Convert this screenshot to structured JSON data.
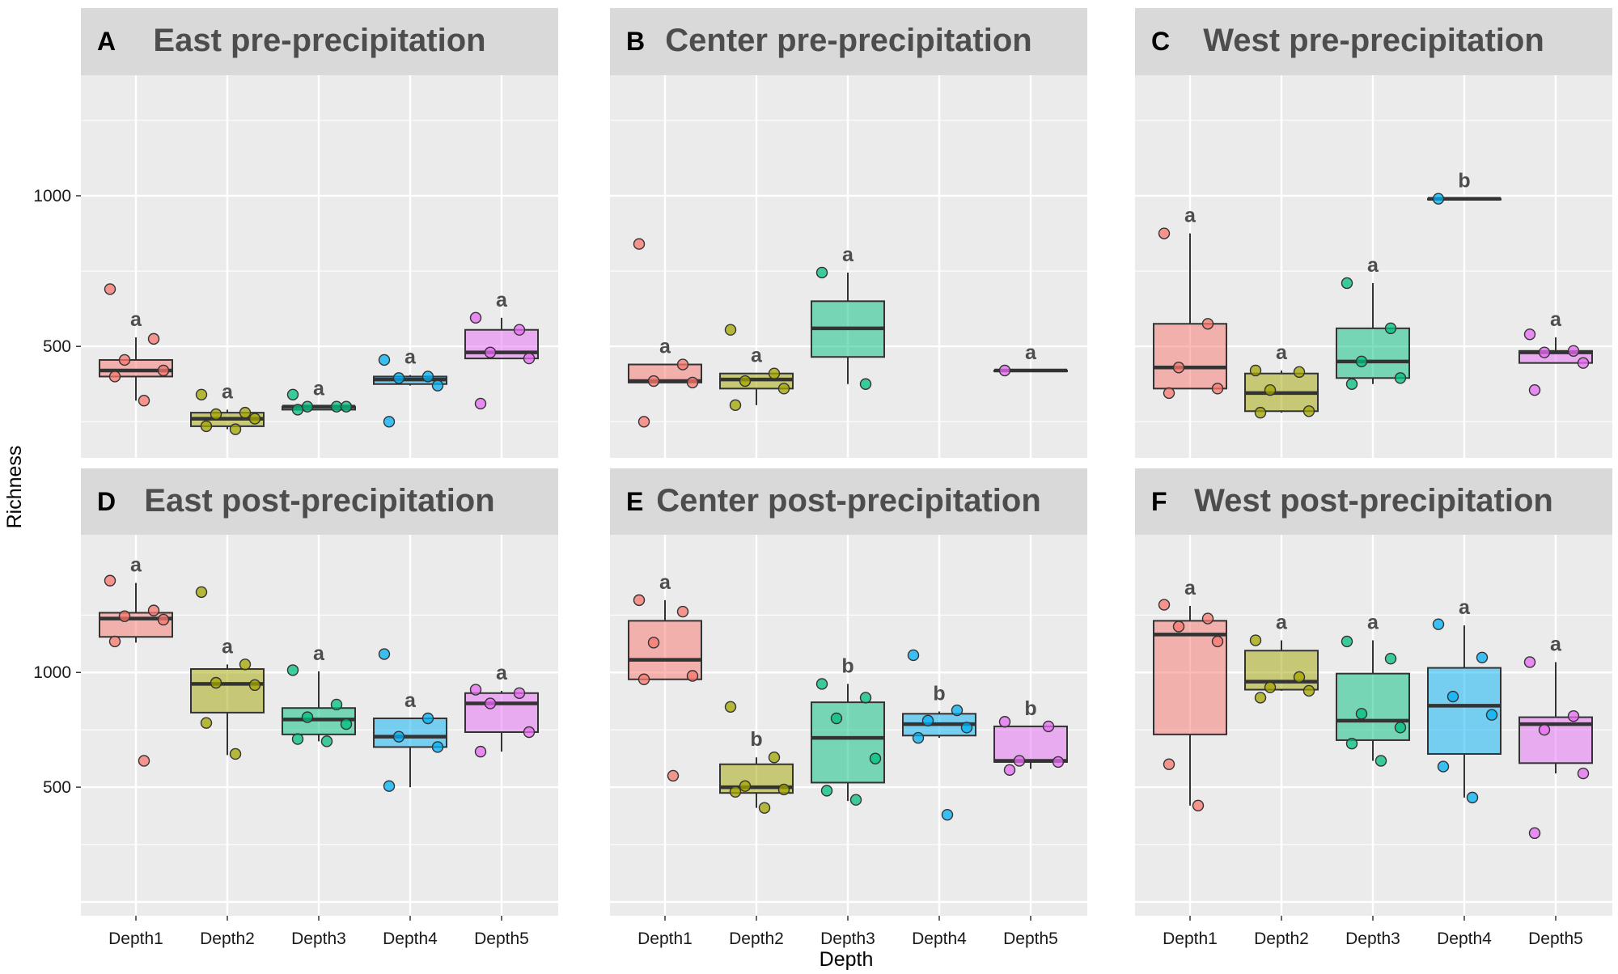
{
  "chart_data": {
    "type": "box",
    "xlabel": "Depth",
    "ylabel": "Richness",
    "categories": [
      "Depth1",
      "Depth2",
      "Depth3",
      "Depth4",
      "Depth5"
    ],
    "colors": [
      "#f8766d",
      "#a3a500",
      "#00bf7d",
      "#00b0f6",
      "#e76bf3"
    ],
    "rows": [
      {
        "ylim": [
          130,
          1400
        ],
        "yticks": [
          500,
          1000
        ]
      },
      {
        "ylim": [
          -60,
          1600
        ],
        "yticks": [
          500,
          1000
        ]
      }
    ],
    "panels": [
      {
        "letter": "A",
        "title": "East pre-precipitation",
        "boxes": [
          {
            "q1": 400,
            "median": 420,
            "q3": 455,
            "whisker_low": 320,
            "whisker_high": 530,
            "sig": "a",
            "points": [
              690,
              525,
              455,
              420,
              400,
              320
            ]
          },
          {
            "q1": 235,
            "median": 260,
            "q3": 280,
            "whisker_low": 225,
            "whisker_high": 290,
            "sig": "a",
            "points": [
              340,
              280,
              275,
              260,
              235,
              225
            ]
          },
          {
            "q1": 290,
            "median": 300,
            "q3": 300,
            "whisker_low": 290,
            "whisker_high": 300,
            "sig": "a",
            "points": [
              340,
              300,
              300,
              300,
              290
            ]
          },
          {
            "q1": 375,
            "median": 390,
            "q3": 400,
            "whisker_low": 370,
            "whisker_high": 405,
            "sig": "a",
            "points": [
              455,
              400,
              395,
              370,
              250
            ]
          },
          {
            "q1": 460,
            "median": 480,
            "q3": 555,
            "whisker_low": 460,
            "whisker_high": 595,
            "sig": "a",
            "points": [
              595,
              555,
              480,
              460,
              310
            ]
          }
        ]
      },
      {
        "letter": "B",
        "title": "Center pre-precipitation",
        "boxes": [
          {
            "q1": 380,
            "median": 385,
            "q3": 440,
            "whisker_low": 380,
            "whisker_high": 440,
            "sig": "a",
            "points": [
              840,
              440,
              385,
              380,
              250
            ]
          },
          {
            "q1": 360,
            "median": 390,
            "q3": 410,
            "whisker_low": 305,
            "whisker_high": 410,
            "sig": "a",
            "points": [
              555,
              410,
              385,
              360,
              305
            ]
          },
          {
            "q1": 465,
            "median": 560,
            "q3": 650,
            "whisker_low": 375,
            "whisker_high": 745,
            "sig": "a",
            "points": [
              745,
              375
            ]
          },
          null,
          {
            "q1": 420,
            "median": 420,
            "q3": 420,
            "whisker_low": 420,
            "whisker_high": 420,
            "sig": "a",
            "points": [
              420
            ]
          }
        ]
      },
      {
        "letter": "C",
        "title": "West pre-precipitation",
        "boxes": [
          {
            "q1": 360,
            "median": 430,
            "q3": 575,
            "whisker_low": 360,
            "whisker_high": 875,
            "sig": "a",
            "points": [
              875,
              575,
              430,
              360,
              345
            ]
          },
          {
            "q1": 285,
            "median": 345,
            "q3": 410,
            "whisker_low": 280,
            "whisker_high": 420,
            "sig": "a",
            "points": [
              420,
              415,
              355,
              285,
              280
            ]
          },
          {
            "q1": 395,
            "median": 450,
            "q3": 560,
            "whisker_low": 375,
            "whisker_high": 710,
            "sig": "a",
            "points": [
              710,
              560,
              450,
              395,
              375
            ]
          },
          {
            "q1": 990,
            "median": 990,
            "q3": 990,
            "whisker_low": 990,
            "whisker_high": 990,
            "sig": "b",
            "points": [
              990
            ]
          },
          {
            "q1": 445,
            "median": 480,
            "q3": 485,
            "whisker_low": 445,
            "whisker_high": 530,
            "sig": "a",
            "points": [
              540,
              485,
              480,
              445,
              355
            ]
          }
        ]
      },
      {
        "letter": "D",
        "title": "East post-precipitation",
        "boxes": [
          {
            "q1": 1155,
            "median": 1235,
            "q3": 1260,
            "whisker_low": 1130,
            "whisker_high": 1390,
            "sig": "a",
            "points": [
              1400,
              1270,
              1245,
              1230,
              1135,
              615
            ]
          },
          {
            "q1": 825,
            "median": 950,
            "q3": 1015,
            "whisker_low": 640,
            "whisker_high": 1035,
            "sig": "a",
            "points": [
              1350,
              1035,
              955,
              945,
              780,
              645
            ]
          },
          {
            "q1": 730,
            "median": 795,
            "q3": 845,
            "whisker_low": 700,
            "whisker_high": 1005,
            "sig": "a",
            "points": [
              1010,
              860,
              805,
              775,
              710,
              700
            ]
          },
          {
            "q1": 675,
            "median": 720,
            "q3": 800,
            "whisker_low": 500,
            "whisker_high": 800,
            "sig": "a",
            "points": [
              1080,
              800,
              720,
              675,
              505
            ]
          },
          {
            "q1": 740,
            "median": 865,
            "q3": 910,
            "whisker_low": 655,
            "whisker_high": 920,
            "sig": "a",
            "points": [
              925,
              910,
              865,
              740,
              655
            ]
          }
        ]
      },
      {
        "letter": "E",
        "title": "Center post-precipitation",
        "boxes": [
          {
            "q1": 970,
            "median": 1055,
            "q3": 1225,
            "whisker_low": 970,
            "whisker_high": 1315,
            "sig": "a",
            "points": [
              1315,
              1265,
              1130,
              985,
              970,
              550
            ]
          },
          {
            "q1": 475,
            "median": 500,
            "q3": 600,
            "whisker_low": 410,
            "whisker_high": 630,
            "sig": "b",
            "points": [
              850,
              630,
              505,
              490,
              480,
              410
            ]
          },
          {
            "q1": 520,
            "median": 715,
            "q3": 870,
            "whisker_low": 440,
            "whisker_high": 950,
            "sig": "b",
            "points": [
              950,
              890,
              800,
              625,
              485,
              445
            ]
          },
          {
            "q1": 725,
            "median": 775,
            "q3": 820,
            "whisker_low": 715,
            "whisker_high": 830,
            "sig": "b",
            "points": [
              1075,
              835,
              790,
              760,
              715,
              380
            ]
          },
          {
            "q1": 610,
            "median": 615,
            "q3": 765,
            "whisker_low": 580,
            "whisker_high": 765,
            "sig": "b",
            "points": [
              785,
              765,
              615,
              610,
              575
            ]
          }
        ]
      },
      {
        "letter": "F",
        "title": "West post-precipitation",
        "boxes": [
          {
            "q1": 730,
            "median": 1165,
            "q3": 1225,
            "whisker_low": 420,
            "whisker_high": 1290,
            "sig": "a",
            "points": [
              1295,
              1235,
              1200,
              1135,
              600,
              420
            ]
          },
          {
            "q1": 925,
            "median": 960,
            "q3": 1095,
            "whisker_low": 920,
            "whisker_high": 1140,
            "sig": "a",
            "points": [
              1140,
              980,
              935,
              920,
              890
            ]
          },
          {
            "q1": 705,
            "median": 790,
            "q3": 995,
            "whisker_low": 615,
            "whisker_high": 1140,
            "sig": "a",
            "points": [
              1135,
              1060,
              820,
              760,
              690,
              615
            ]
          },
          {
            "q1": 645,
            "median": 855,
            "q3": 1020,
            "whisker_low": 455,
            "whisker_high": 1205,
            "sig": "a",
            "points": [
              1210,
              1065,
              895,
              815,
              590,
              455
            ]
          },
          {
            "q1": 605,
            "median": 775,
            "q3": 805,
            "whisker_low": 560,
            "whisker_high": 1045,
            "sig": "a",
            "points": [
              1045,
              810,
              750,
              560,
              300
            ]
          }
        ]
      }
    ]
  }
}
